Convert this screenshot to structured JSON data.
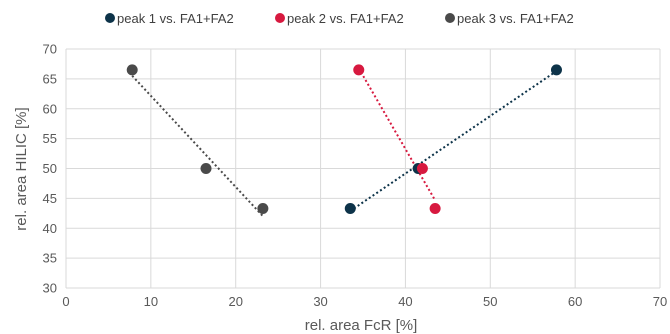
{
  "chart_data": {
    "type": "scatter",
    "xlabel": "rel. area FcR [%]",
    "ylabel": "rel. area HILIC [%]",
    "xlim": [
      0,
      70
    ],
    "ylim": [
      30,
      70
    ],
    "x_ticks": [
      0,
      10,
      20,
      30,
      40,
      50,
      60,
      70
    ],
    "y_ticks": [
      30,
      35,
      40,
      45,
      50,
      55,
      60,
      65,
      70
    ],
    "grid": true,
    "legend_position": "top",
    "trendlines": "dotted linear",
    "series": [
      {
        "name": "peak 1 vs. FA1+FA2",
        "color": "#0d3349",
        "points": [
          {
            "x": 33.5,
            "y": 43.3
          },
          {
            "x": 41.5,
            "y": 50.0
          },
          {
            "x": 57.8,
            "y": 66.5
          }
        ]
      },
      {
        "name": "peak 2 vs. FA1+FA2",
        "color": "#d7193f",
        "points": [
          {
            "x": 34.5,
            "y": 66.5
          },
          {
            "x": 42.0,
            "y": 50.0
          },
          {
            "x": 43.5,
            "y": 43.3
          }
        ]
      },
      {
        "name": "peak 3 vs. FA1+FA2",
        "color": "#4a4a4a",
        "points": [
          {
            "x": 7.8,
            "y": 66.5
          },
          {
            "x": 16.5,
            "y": 50.0
          },
          {
            "x": 23.2,
            "y": 43.3
          }
        ]
      }
    ]
  }
}
